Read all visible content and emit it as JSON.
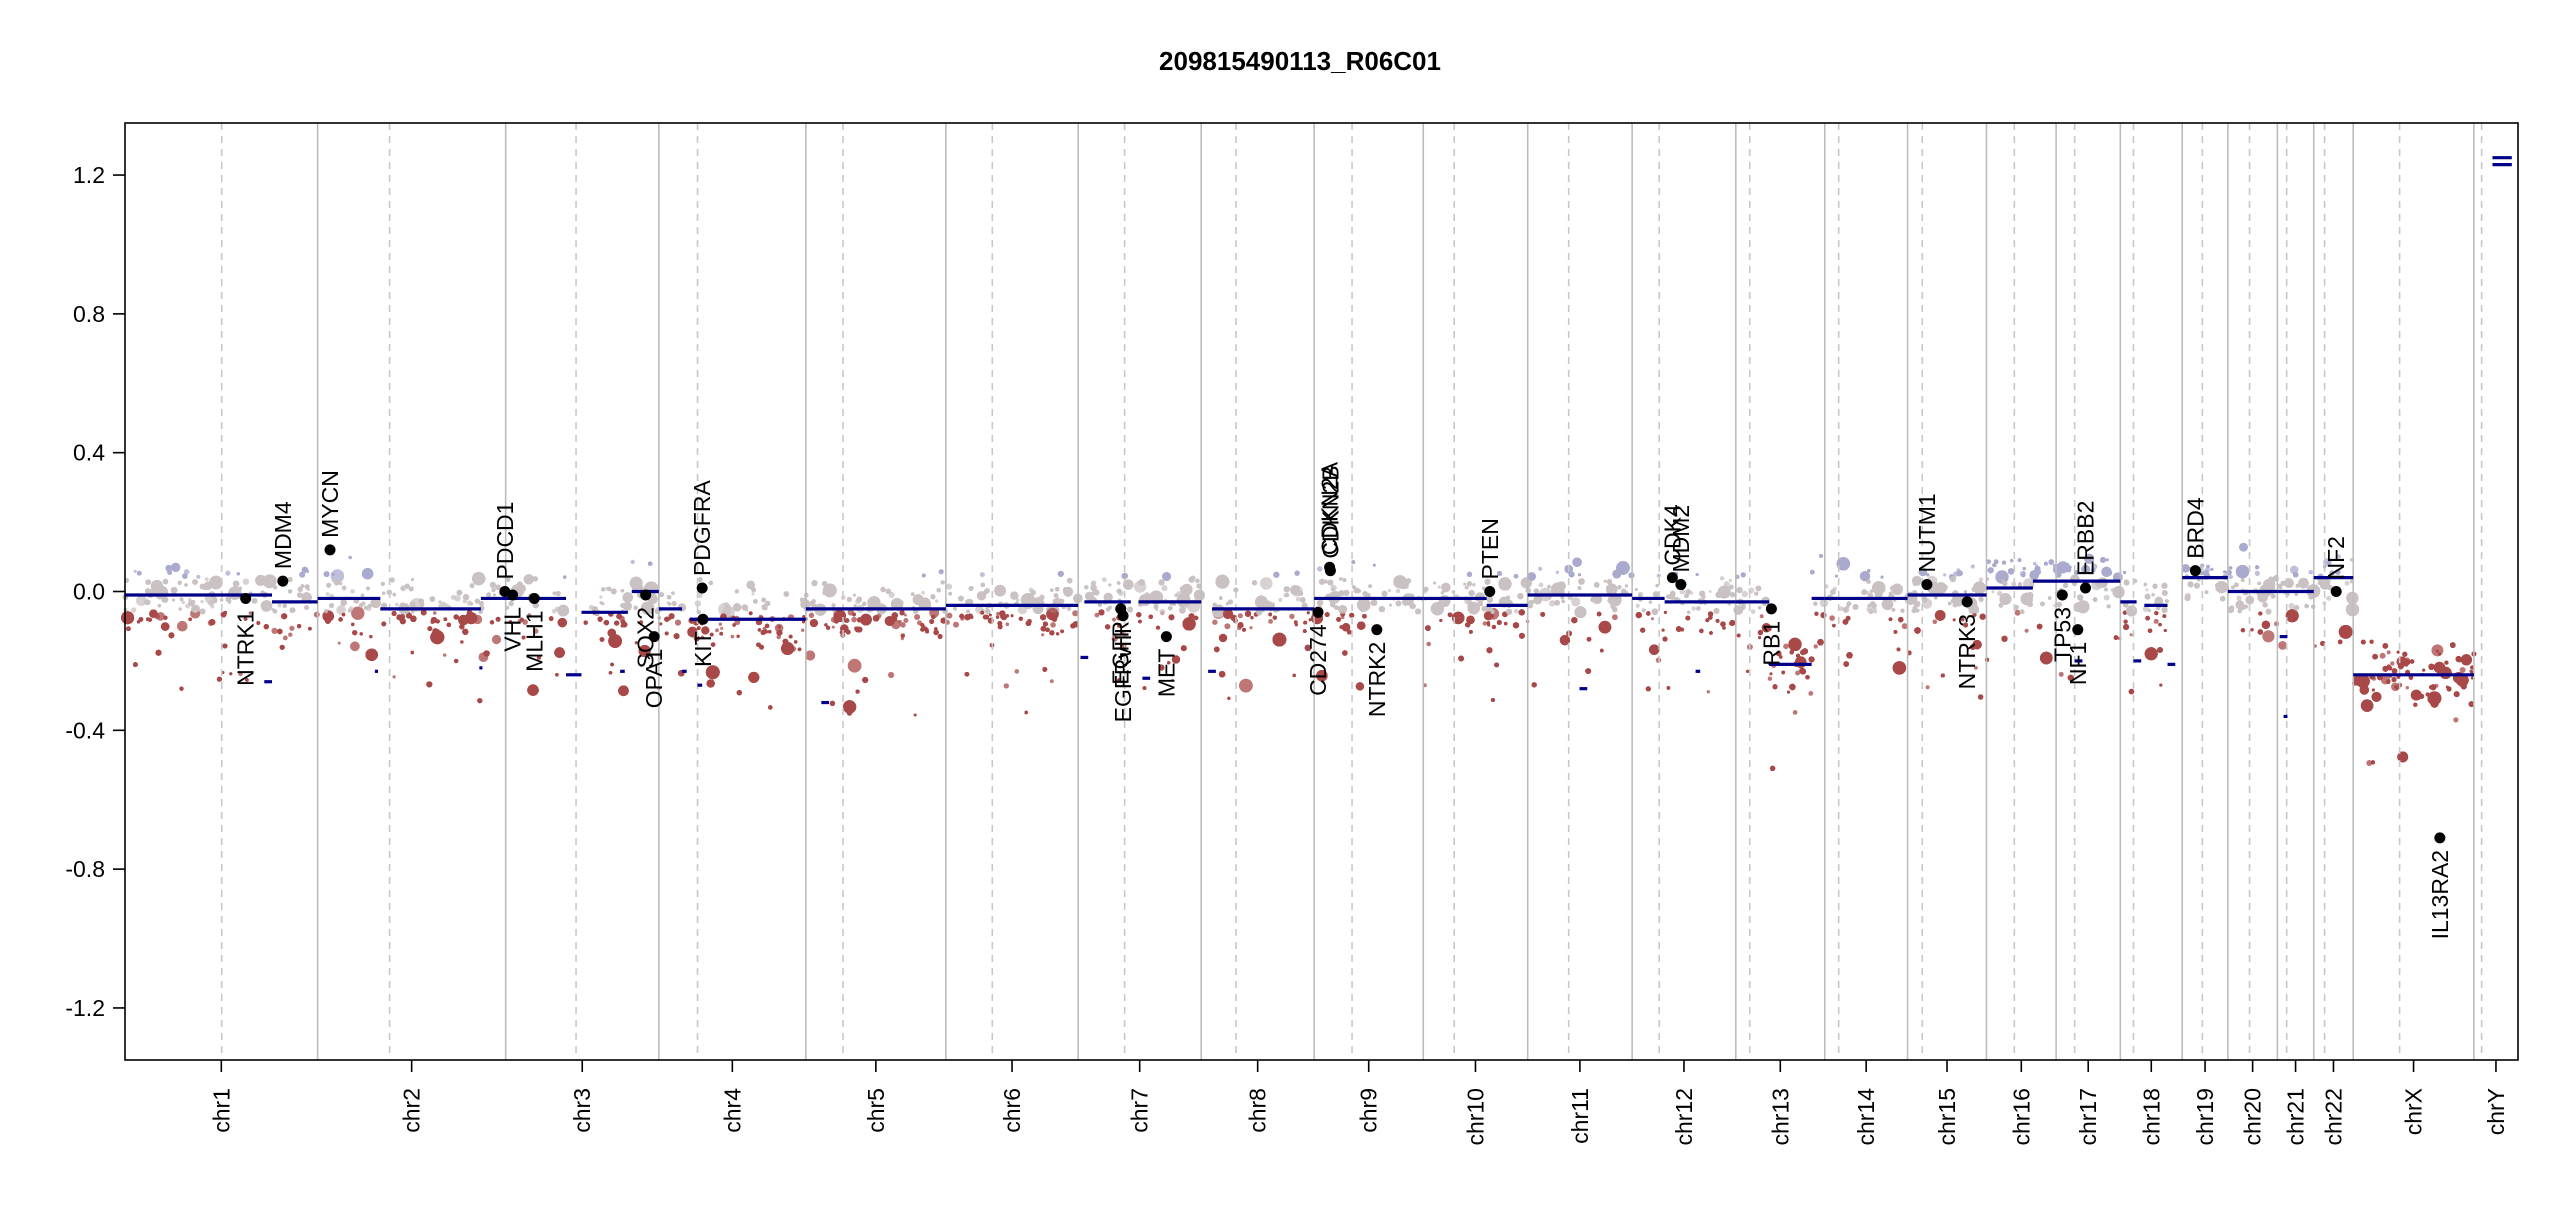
{
  "chart_data": {
    "type": "scatter",
    "title": "209815490113_R06C01",
    "xlabel": "",
    "ylabel": "",
    "ylim": [
      -1.35,
      1.35
    ],
    "yticks": [
      -1.2,
      -0.8,
      -0.4,
      0.0,
      0.4,
      0.8,
      1.2
    ],
    "ytick_labels": [
      "-1.2",
      "-0.8",
      "-0.4",
      "0.0",
      "0.4",
      "0.8",
      "1.2"
    ],
    "grid": false,
    "legend": "none",
    "colors": {
      "axis": "#000000",
      "chrom_boundary": "#bdbdbd",
      "centromere": "#c8c8c8",
      "segment": "#00008b",
      "gain_point": "#a9a9cf",
      "neutral_point": "#c9c2c2",
      "loss_point": "#a84848",
      "gene_marker": "#000000"
    },
    "chromosomes": [
      {
        "name": "chr1",
        "start": 0,
        "end": 249,
        "centromere": 125
      },
      {
        "name": "chr2",
        "start": 249,
        "end": 492,
        "centromere": 342
      },
      {
        "name": "chr3",
        "start": 492,
        "end": 690,
        "centromere": 583
      },
      {
        "name": "chr4",
        "start": 690,
        "end": 880,
        "centromere": 740
      },
      {
        "name": "chr5",
        "start": 880,
        "end": 1061,
        "centromere": 928
      },
      {
        "name": "chr6",
        "start": 1061,
        "end": 1232,
        "centromere": 1121
      },
      {
        "name": "chr7",
        "start": 1232,
        "end": 1391,
        "centromere": 1292
      },
      {
        "name": "chr8",
        "start": 1391,
        "end": 1537,
        "centromere": 1436
      },
      {
        "name": "chr9",
        "start": 1537,
        "end": 1678,
        "centromere": 1586
      },
      {
        "name": "chr10",
        "start": 1678,
        "end": 1813,
        "centromere": 1718
      },
      {
        "name": "chr11",
        "start": 1813,
        "end": 1948,
        "centromere": 1866
      },
      {
        "name": "chr12",
        "start": 1948,
        "end": 2082,
        "centromere": 1983
      },
      {
        "name": "chr13",
        "start": 2082,
        "end": 2197,
        "centromere": 2100
      },
      {
        "name": "chr14",
        "start": 2197,
        "end": 2304,
        "centromere": 2215
      },
      {
        "name": "chr15",
        "start": 2304,
        "end": 2406,
        "centromere": 2323
      },
      {
        "name": "chr16",
        "start": 2406,
        "end": 2496,
        "centromere": 2442
      },
      {
        "name": "chr17",
        "start": 2496,
        "end": 2579,
        "centromere": 2520
      },
      {
        "name": "chr18",
        "start": 2579,
        "end": 2659,
        "centromere": 2596
      },
      {
        "name": "chr19",
        "start": 2659,
        "end": 2718,
        "centromere": 2685
      },
      {
        "name": "chr20",
        "start": 2718,
        "end": 2782,
        "centromere": 2746
      },
      {
        "name": "chr21",
        "start": 2782,
        "end": 2829,
        "centromere": 2794
      },
      {
        "name": "chr22",
        "start": 2829,
        "end": 2880,
        "centromere": 2843
      },
      {
        "name": "chrX",
        "start": 2880,
        "end": 3036,
        "centromere": 2940
      },
      {
        "name": "chrY",
        "start": 3036,
        "end": 3093,
        "centromere": 3046
      }
    ],
    "segments": [
      {
        "x0": 0,
        "x1": 190,
        "y": -0.01
      },
      {
        "x0": 190,
        "x1": 249,
        "y": -0.03
      },
      {
        "x0": 249,
        "x1": 330,
        "y": -0.02
      },
      {
        "x0": 330,
        "x1": 460,
        "y": -0.05
      },
      {
        "x0": 460,
        "x1": 492,
        "y": -0.02
      },
      {
        "x0": 492,
        "x1": 570,
        "y": -0.02
      },
      {
        "x0": 590,
        "x1": 650,
        "y": -0.06
      },
      {
        "x0": 655,
        "x1": 690,
        "y": 0.0
      },
      {
        "x0": 690,
        "x1": 720,
        "y": -0.05
      },
      {
        "x0": 730,
        "x1": 880,
        "y": -0.08
      },
      {
        "x0": 880,
        "x1": 1061,
        "y": -0.05
      },
      {
        "x0": 1061,
        "x1": 1232,
        "y": -0.04
      },
      {
        "x0": 1240,
        "x1": 1300,
        "y": -0.03
      },
      {
        "x0": 1310,
        "x1": 1391,
        "y": -0.03
      },
      {
        "x0": 1405,
        "x1": 1537,
        "y": -0.05
      },
      {
        "x0": 1537,
        "x1": 1678,
        "y": -0.02
      },
      {
        "x0": 1678,
        "x1": 1760,
        "y": -0.02
      },
      {
        "x0": 1760,
        "x1": 1813,
        "y": -0.04
      },
      {
        "x0": 1813,
        "x1": 1948,
        "y": -0.01
      },
      {
        "x0": 1948,
        "x1": 1990,
        "y": -0.02
      },
      {
        "x0": 1990,
        "x1": 2082,
        "y": -0.03
      },
      {
        "x0": 2082,
        "x1": 2125,
        "y": -0.03
      },
      {
        "x0": 2125,
        "x1": 2180,
        "y": -0.21
      },
      {
        "x0": 2180,
        "x1": 2197,
        "y": -0.02
      },
      {
        "x0": 2197,
        "x1": 2304,
        "y": -0.02
      },
      {
        "x0": 2304,
        "x1": 2406,
        "y": -0.01
      },
      {
        "x0": 2406,
        "x1": 2466,
        "y": 0.01
      },
      {
        "x0": 2466,
        "x1": 2579,
        "y": 0.03
      },
      {
        "x0": 2579,
        "x1": 2600,
        "y": -0.03
      },
      {
        "x0": 2610,
        "x1": 2640,
        "y": -0.04
      },
      {
        "x0": 2659,
        "x1": 2718,
        "y": 0.04
      },
      {
        "x0": 2718,
        "x1": 2782,
        "y": 0.0
      },
      {
        "x0": 2782,
        "x1": 2829,
        "y": 0.0
      },
      {
        "x0": 2829,
        "x1": 2880,
        "y": 0.04
      },
      {
        "x0": 2880,
        "x1": 3036,
        "y": -0.24
      },
      {
        "x0": 3060,
        "x1": 3085,
        "y": 1.23
      },
      {
        "x0": 3060,
        "x1": 3085,
        "y": 1.25
      }
    ],
    "small_segments": [
      {
        "x0": 180,
        "x1": 190,
        "y": -0.26
      },
      {
        "x0": 323,
        "x1": 327,
        "y": -0.23
      },
      {
        "x0": 458,
        "x1": 462,
        "y": -0.22
      },
      {
        "x0": 570,
        "x1": 590,
        "y": -0.24
      },
      {
        "x0": 640,
        "x1": 646,
        "y": -0.23
      },
      {
        "x0": 720,
        "x1": 726,
        "y": -0.23
      },
      {
        "x0": 740,
        "x1": 746,
        "y": -0.27
      },
      {
        "x0": 900,
        "x1": 910,
        "y": -0.32
      },
      {
        "x0": 1235,
        "x1": 1245,
        "y": -0.19
      },
      {
        "x0": 1315,
        "x1": 1325,
        "y": -0.25
      },
      {
        "x0": 1400,
        "x1": 1410,
        "y": -0.23
      },
      {
        "x0": 1880,
        "x1": 1890,
        "y": -0.28
      },
      {
        "x0": 2030,
        "x1": 2036,
        "y": -0.23
      },
      {
        "x0": 2520,
        "x1": 2530,
        "y": -0.2
      },
      {
        "x0": 2596,
        "x1": 2606,
        "y": -0.2
      },
      {
        "x0": 2640,
        "x1": 2650,
        "y": -0.21
      },
      {
        "x0": 2785,
        "x1": 2795,
        "y": -0.13
      },
      {
        "x0": 2790,
        "x1": 2795,
        "y": -0.36
      }
    ],
    "genes": [
      {
        "name": "NTRK1",
        "x": 156,
        "y": -0.02,
        "label_side": "below"
      },
      {
        "name": "MDM4",
        "x": 204,
        "y": 0.03,
        "label_side": "above"
      },
      {
        "name": "MYCN",
        "x": 265,
        "y": 0.12,
        "label_side": "above"
      },
      {
        "name": "PDCD1",
        "x": 491,
        "y": 0.0,
        "label_side": "above"
      },
      {
        "name": "VHL",
        "x": 501,
        "y": -0.01,
        "label_side": "below"
      },
      {
        "name": "MLH1",
        "x": 529,
        "y": -0.02,
        "label_side": "below"
      },
      {
        "name": "SOX2",
        "x": 673,
        "y": -0.01,
        "label_side": "below"
      },
      {
        "name": "OPA1",
        "x": 684,
        "y": -0.13,
        "label_side": "below"
      },
      {
        "name": "PDGFRA",
        "x": 746,
        "y": 0.01,
        "label_side": "above"
      },
      {
        "name": "KIT",
        "x": 747,
        "y": -0.08,
        "label_side": "below"
      },
      {
        "name": "EGFR",
        "x": 1287,
        "y": -0.05,
        "label_side": "below"
      },
      {
        "name": "EGFRvIII",
        "x": 1290,
        "y": -0.07,
        "label_side": "below"
      },
      {
        "name": "MET",
        "x": 1346,
        "y": -0.13,
        "label_side": "below"
      },
      {
        "name": "CD274",
        "x": 1542,
        "y": -0.06,
        "label_side": "below"
      },
      {
        "name": "CDKN2A",
        "x": 1557,
        "y": 0.07,
        "label_side": "above"
      },
      {
        "name": "CDKN2B",
        "x": 1558,
        "y": 0.06,
        "label_side": "above"
      },
      {
        "name": "NTRK2",
        "x": 1618,
        "y": -0.11,
        "label_side": "below"
      },
      {
        "name": "PTEN",
        "x": 1764,
        "y": 0.0,
        "label_side": "above"
      },
      {
        "name": "CDK4",
        "x": 2000,
        "y": 0.04,
        "label_side": "above"
      },
      {
        "name": "MDM2",
        "x": 2011,
        "y": 0.02,
        "label_side": "above"
      },
      {
        "name": "RB1",
        "x": 2128,
        "y": -0.05,
        "label_side": "below"
      },
      {
        "name": "NUTM1",
        "x": 2329,
        "y": 0.02,
        "label_side": "above"
      },
      {
        "name": "NTRK3",
        "x": 2381,
        "y": -0.03,
        "label_side": "below"
      },
      {
        "name": "TP53",
        "x": 2504,
        "y": -0.01,
        "label_side": "below"
      },
      {
        "name": "NF1",
        "x": 2524,
        "y": -0.11,
        "label_side": "below"
      },
      {
        "name": "ERBB2",
        "x": 2534,
        "y": 0.01,
        "label_side": "above"
      },
      {
        "name": "BRD4",
        "x": 2676,
        "y": 0.06,
        "label_side": "above"
      },
      {
        "name": "NF2",
        "x": 2858,
        "y": 0.0,
        "label_side": "above"
      },
      {
        "name": "IL13RA2",
        "x": 2992,
        "y": -0.71,
        "label_side": "below"
      }
    ]
  }
}
